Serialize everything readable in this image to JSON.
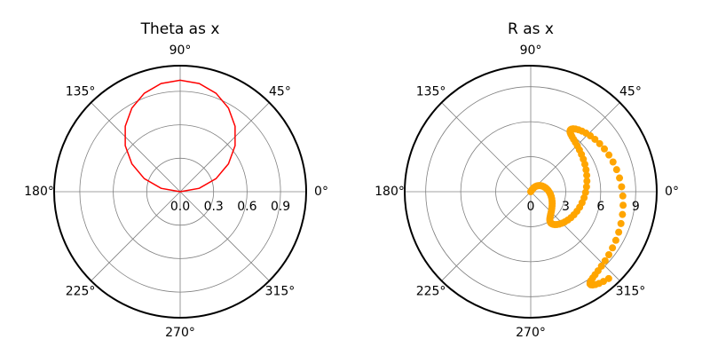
{
  "chart_data": [
    {
      "type": "line",
      "title": "Theta as x",
      "color": "#ff0000",
      "x": [
        0,
        10,
        20,
        30,
        40,
        50,
        60,
        70,
        80,
        90,
        100,
        110,
        120,
        130,
        140,
        150,
        160,
        170,
        180
      ],
      "values": [
        0,
        0.1736,
        0.342,
        0.5,
        0.6428,
        0.766,
        0.866,
        0.9397,
        0.9848,
        1,
        0.9848,
        0.9397,
        0.866,
        0.766,
        0.6428,
        0.5,
        0.342,
        0.1736,
        0
      ],
      "rlim": [
        0,
        1.13
      ],
      "rticks": [
        {
          "value": 0,
          "label": "0.0"
        },
        0.3,
        0.6,
        0.9
      ],
      "thetaticks": [
        {
          "value": 0,
          "label": "0°"
        },
        {
          "value": 45,
          "label": "45°"
        },
        {
          "value": 90,
          "label": "90°"
        },
        {
          "value": 135,
          "label": "135°"
        },
        {
          "value": 180,
          "label": "180°"
        },
        {
          "value": 225,
          "label": "225°"
        },
        {
          "value": 270,
          "label": "270°"
        },
        {
          "value": 315,
          "label": "315°"
        }
      ],
      "grid": true
    },
    {
      "type": "scatter",
      "title": "R as x",
      "color": "#ffa500",
      "x": [
        57.3,
        57.01,
        56.15,
        54.74,
        52.77,
        50.28,
        47.29,
        43.82,
        39.92,
        35.62,
        30.96,
        25.99,
        20.76,
        15.33,
        9.74,
        4.05,
        -1.67,
        -7.38,
        -13.02,
        -18.52,
        -23.84,
        -28.92,
        -33.72,
        -38.18,
        -42.25,
        -45.9,
        -49.1,
        -51.8,
        -53.98,
        -55.63,
        -56.72,
        -57.25,
        -57.2,
        -56.58,
        -55.39,
        -53.66,
        -51.38,
        -48.59,
        -45.32,
        -41.59,
        -37.45,
        -32.93,
        -28.09,
        -22.96,
        -17.61,
        -12.08,
        -6.43,
        -0.71,
        5.01,
        10.69,
        16.25,
        21.66,
        26.84,
        31.76,
        36.37,
        40.61,
        44.44,
        47.82,
        50.74,
        53.14,
        55.01,
        56.34,
        57.1,
        57.29,
        56.91,
        55.96,
        54.45,
        52.39,
        49.81,
        46.74,
        43.2,
        39.22,
        34.86,
        30.14,
        25.13,
        19.86,
        14.4,
        8.79,
        3.09,
        -2.64,
        -8.34,
        -13.95,
        -19.43,
        -24.72,
        -29.75,
        -34.49,
        -38.89,
        -42.89,
        -46.47,
        -49.58,
        -52.2,
        -54.3,
        -55.85,
        -56.85,
        -57.28,
        -57.14,
        -56.42,
        -55.14,
        -53.31,
        -50.95,
        -48.08
      ],
      "values": [
        0,
        0.1,
        0.2,
        0.3,
        0.4,
        0.5,
        0.6,
        0.7,
        0.8,
        0.9,
        1,
        1.1,
        1.2,
        1.3,
        1.4,
        1.5,
        1.6,
        1.7,
        1.8,
        1.9,
        2,
        2.1,
        2.2,
        2.3,
        2.4,
        2.5,
        2.6,
        2.7,
        2.8,
        2.9,
        3,
        3.1,
        3.2,
        3.3,
        3.4,
        3.5,
        3.6,
        3.7,
        3.8,
        3.9,
        4,
        4.1,
        4.2,
        4.3,
        4.4,
        4.5,
        4.6,
        4.7,
        4.8,
        4.9,
        5,
        5.1,
        5.2,
        5.3,
        5.4,
        5.5,
        5.6,
        5.7,
        5.8,
        5.9,
        6,
        6.1,
        6.2,
        6.3,
        6.4,
        6.5,
        6.6,
        6.7,
        6.8,
        6.9,
        7,
        7.1,
        7.2,
        7.3,
        7.4,
        7.5,
        7.6,
        7.7,
        7.8,
        7.9,
        8,
        8.1,
        8.2,
        8.3,
        8.4,
        8.5,
        8.6,
        8.7,
        8.8,
        8.9,
        9,
        9.1,
        9.2,
        9.3,
        9.4,
        9.5,
        9.6,
        9.7,
        9.8,
        9.9,
        10
      ],
      "rlim": [
        0,
        10.8
      ],
      "rticks": [
        0,
        3,
        6,
        9
      ],
      "thetaticks": [
        {
          "value": 0,
          "label": "0°"
        },
        {
          "value": 45,
          "label": "45°"
        },
        {
          "value": 90,
          "label": "90°"
        },
        {
          "value": 135,
          "label": "135°"
        },
        {
          "value": 180,
          "label": "180°"
        },
        {
          "value": 225,
          "label": "225°"
        },
        {
          "value": 270,
          "label": "270°"
        },
        {
          "value": 315,
          "label": "315°"
        }
      ],
      "grid": true
    }
  ]
}
